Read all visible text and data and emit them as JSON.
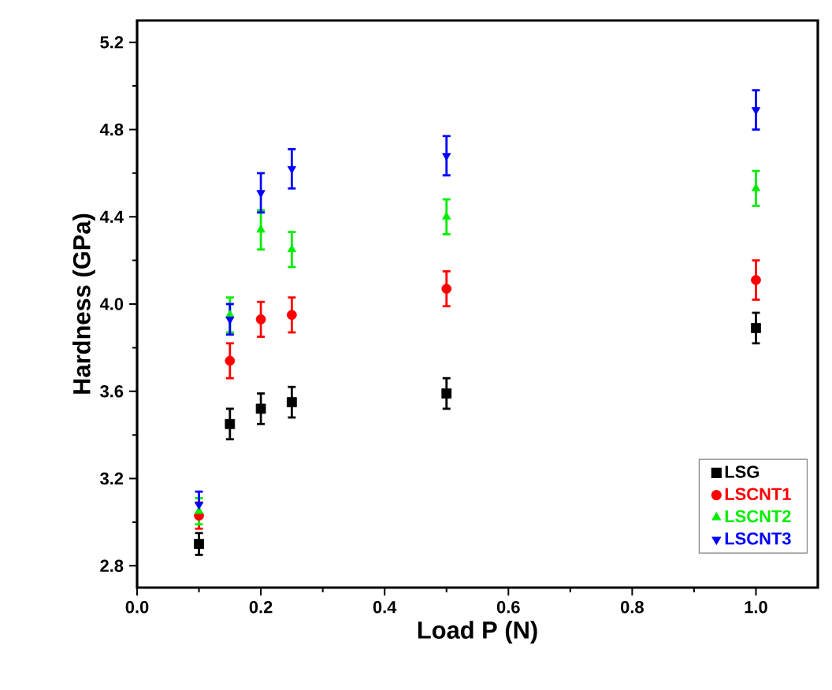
{
  "chart_data": {
    "type": "scatter",
    "xlabel": "Load P (N)",
    "ylabel": "Hardness (GPa)",
    "xlim": [
      0,
      1.1
    ],
    "ylim": [
      2.7,
      5.3
    ],
    "xticks": [
      {
        "value": 0,
        "label": "0.0"
      },
      0.2,
      0.4,
      0.6,
      0.8,
      {
        "value": 1,
        "label": "1.0"
      }
    ],
    "yticks": [
      2.8,
      3.2,
      3.6,
      {
        "value": 4,
        "label": "4.0"
      },
      4.4,
      4.8,
      5.2
    ],
    "grid": false,
    "legend": "bottom right",
    "series": [
      {
        "name": "LSG",
        "color": "#000000",
        "marker": "square",
        "x": [
          0.1,
          0.15,
          0.2,
          0.25,
          0.5,
          1.0
        ],
        "values": [
          2.9,
          3.45,
          3.52,
          3.55,
          3.59,
          3.89
        ],
        "errors": [
          0.05,
          0.07,
          0.07,
          0.07,
          0.07,
          0.07
        ]
      },
      {
        "name": "LSCNT1",
        "color": "#ff0000",
        "marker": "circle",
        "x": [
          0.1,
          0.15,
          0.2,
          0.25,
          0.5,
          1.0
        ],
        "values": [
          3.03,
          3.74,
          3.93,
          3.95,
          4.07,
          4.11
        ],
        "errors": [
          0.06,
          0.08,
          0.08,
          0.08,
          0.08,
          0.09
        ]
      },
      {
        "name": "LSCNT2",
        "color": "#00ee00",
        "marker": "triangle",
        "x": [
          0.1,
          0.15,
          0.2,
          0.25,
          0.5,
          1.0
        ],
        "values": [
          3.05,
          3.95,
          4.34,
          4.25,
          4.4,
          4.53
        ],
        "errors": [
          0.06,
          0.08,
          0.09,
          0.08,
          0.08,
          0.08
        ]
      },
      {
        "name": "LSCNT3",
        "color": "#0000ff",
        "marker": "triangle-down",
        "x": [
          0.1,
          0.15,
          0.2,
          0.25,
          0.5,
          1.0
        ],
        "values": [
          3.08,
          3.93,
          4.51,
          4.62,
          4.68,
          4.89
        ],
        "errors": [
          0.06,
          0.07,
          0.09,
          0.09,
          0.09,
          0.09
        ]
      }
    ]
  }
}
